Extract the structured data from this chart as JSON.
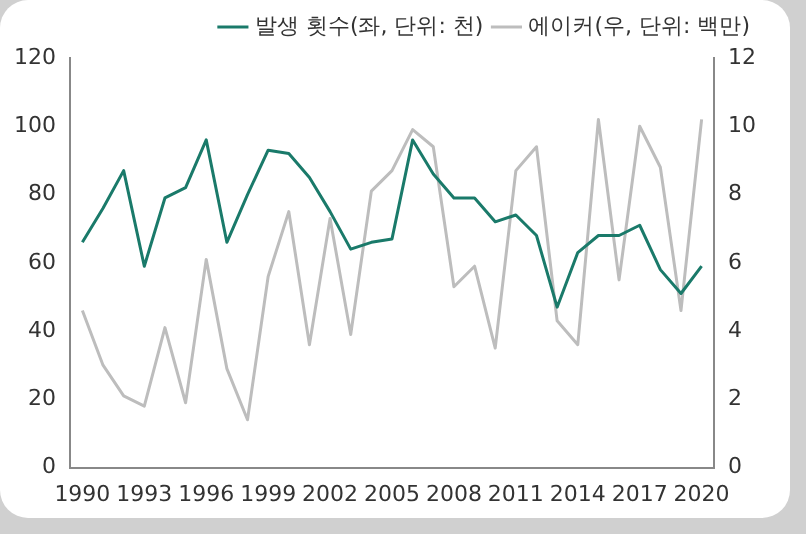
{
  "chart_data": {
    "type": "line",
    "x": [
      1990,
      1991,
      1992,
      1993,
      1994,
      1995,
      1996,
      1997,
      1998,
      1999,
      2000,
      2001,
      2002,
      2003,
      2004,
      2005,
      2006,
      2007,
      2008,
      2009,
      2010,
      2011,
      2012,
      2013,
      2014,
      2015,
      2016,
      2017,
      2018,
      2019,
      2020
    ],
    "series": [
      {
        "name": "발생 횟수(좌, 단위: 천)",
        "color": "#1a7a6a",
        "values": [
          66,
          76,
          87,
          59,
          79,
          82,
          96,
          66,
          80,
          93,
          92,
          85,
          75,
          64,
          66,
          67,
          96,
          86,
          79,
          79,
          72,
          74,
          68,
          47,
          63,
          68,
          68,
          71,
          58,
          51,
          59
        ]
      },
      {
        "name": "에이커(우, 단위: 백만)",
        "color": "#bdbdbd",
        "axis": "y2",
        "values": [
          4.6,
          3.0,
          2.1,
          1.8,
          4.1,
          1.9,
          6.1,
          2.9,
          1.4,
          5.6,
          7.5,
          3.6,
          7.3,
          3.9,
          8.1,
          8.7,
          9.9,
          9.4,
          5.3,
          5.9,
          3.5,
          8.7,
          9.4,
          4.3,
          3.6,
          10.2,
          5.5,
          10.0,
          8.8,
          4.6,
          10.2
        ]
      }
    ],
    "xlim": [
      1989.4,
      2020.6
    ],
    "xticks": [
      1990,
      1993,
      1996,
      1999,
      2002,
      2005,
      2008,
      2011,
      2014,
      2017,
      2020
    ],
    "ylim": [
      0,
      120
    ],
    "yticks": [
      0,
      20,
      40,
      60,
      80,
      100,
      120
    ],
    "y2lim": [
      0,
      12
    ],
    "y2ticks": [
      0,
      2,
      4,
      6,
      8,
      10,
      12
    ],
    "legend": "top",
    "grid": false,
    "marker": "none",
    "line_style": "solid"
  }
}
